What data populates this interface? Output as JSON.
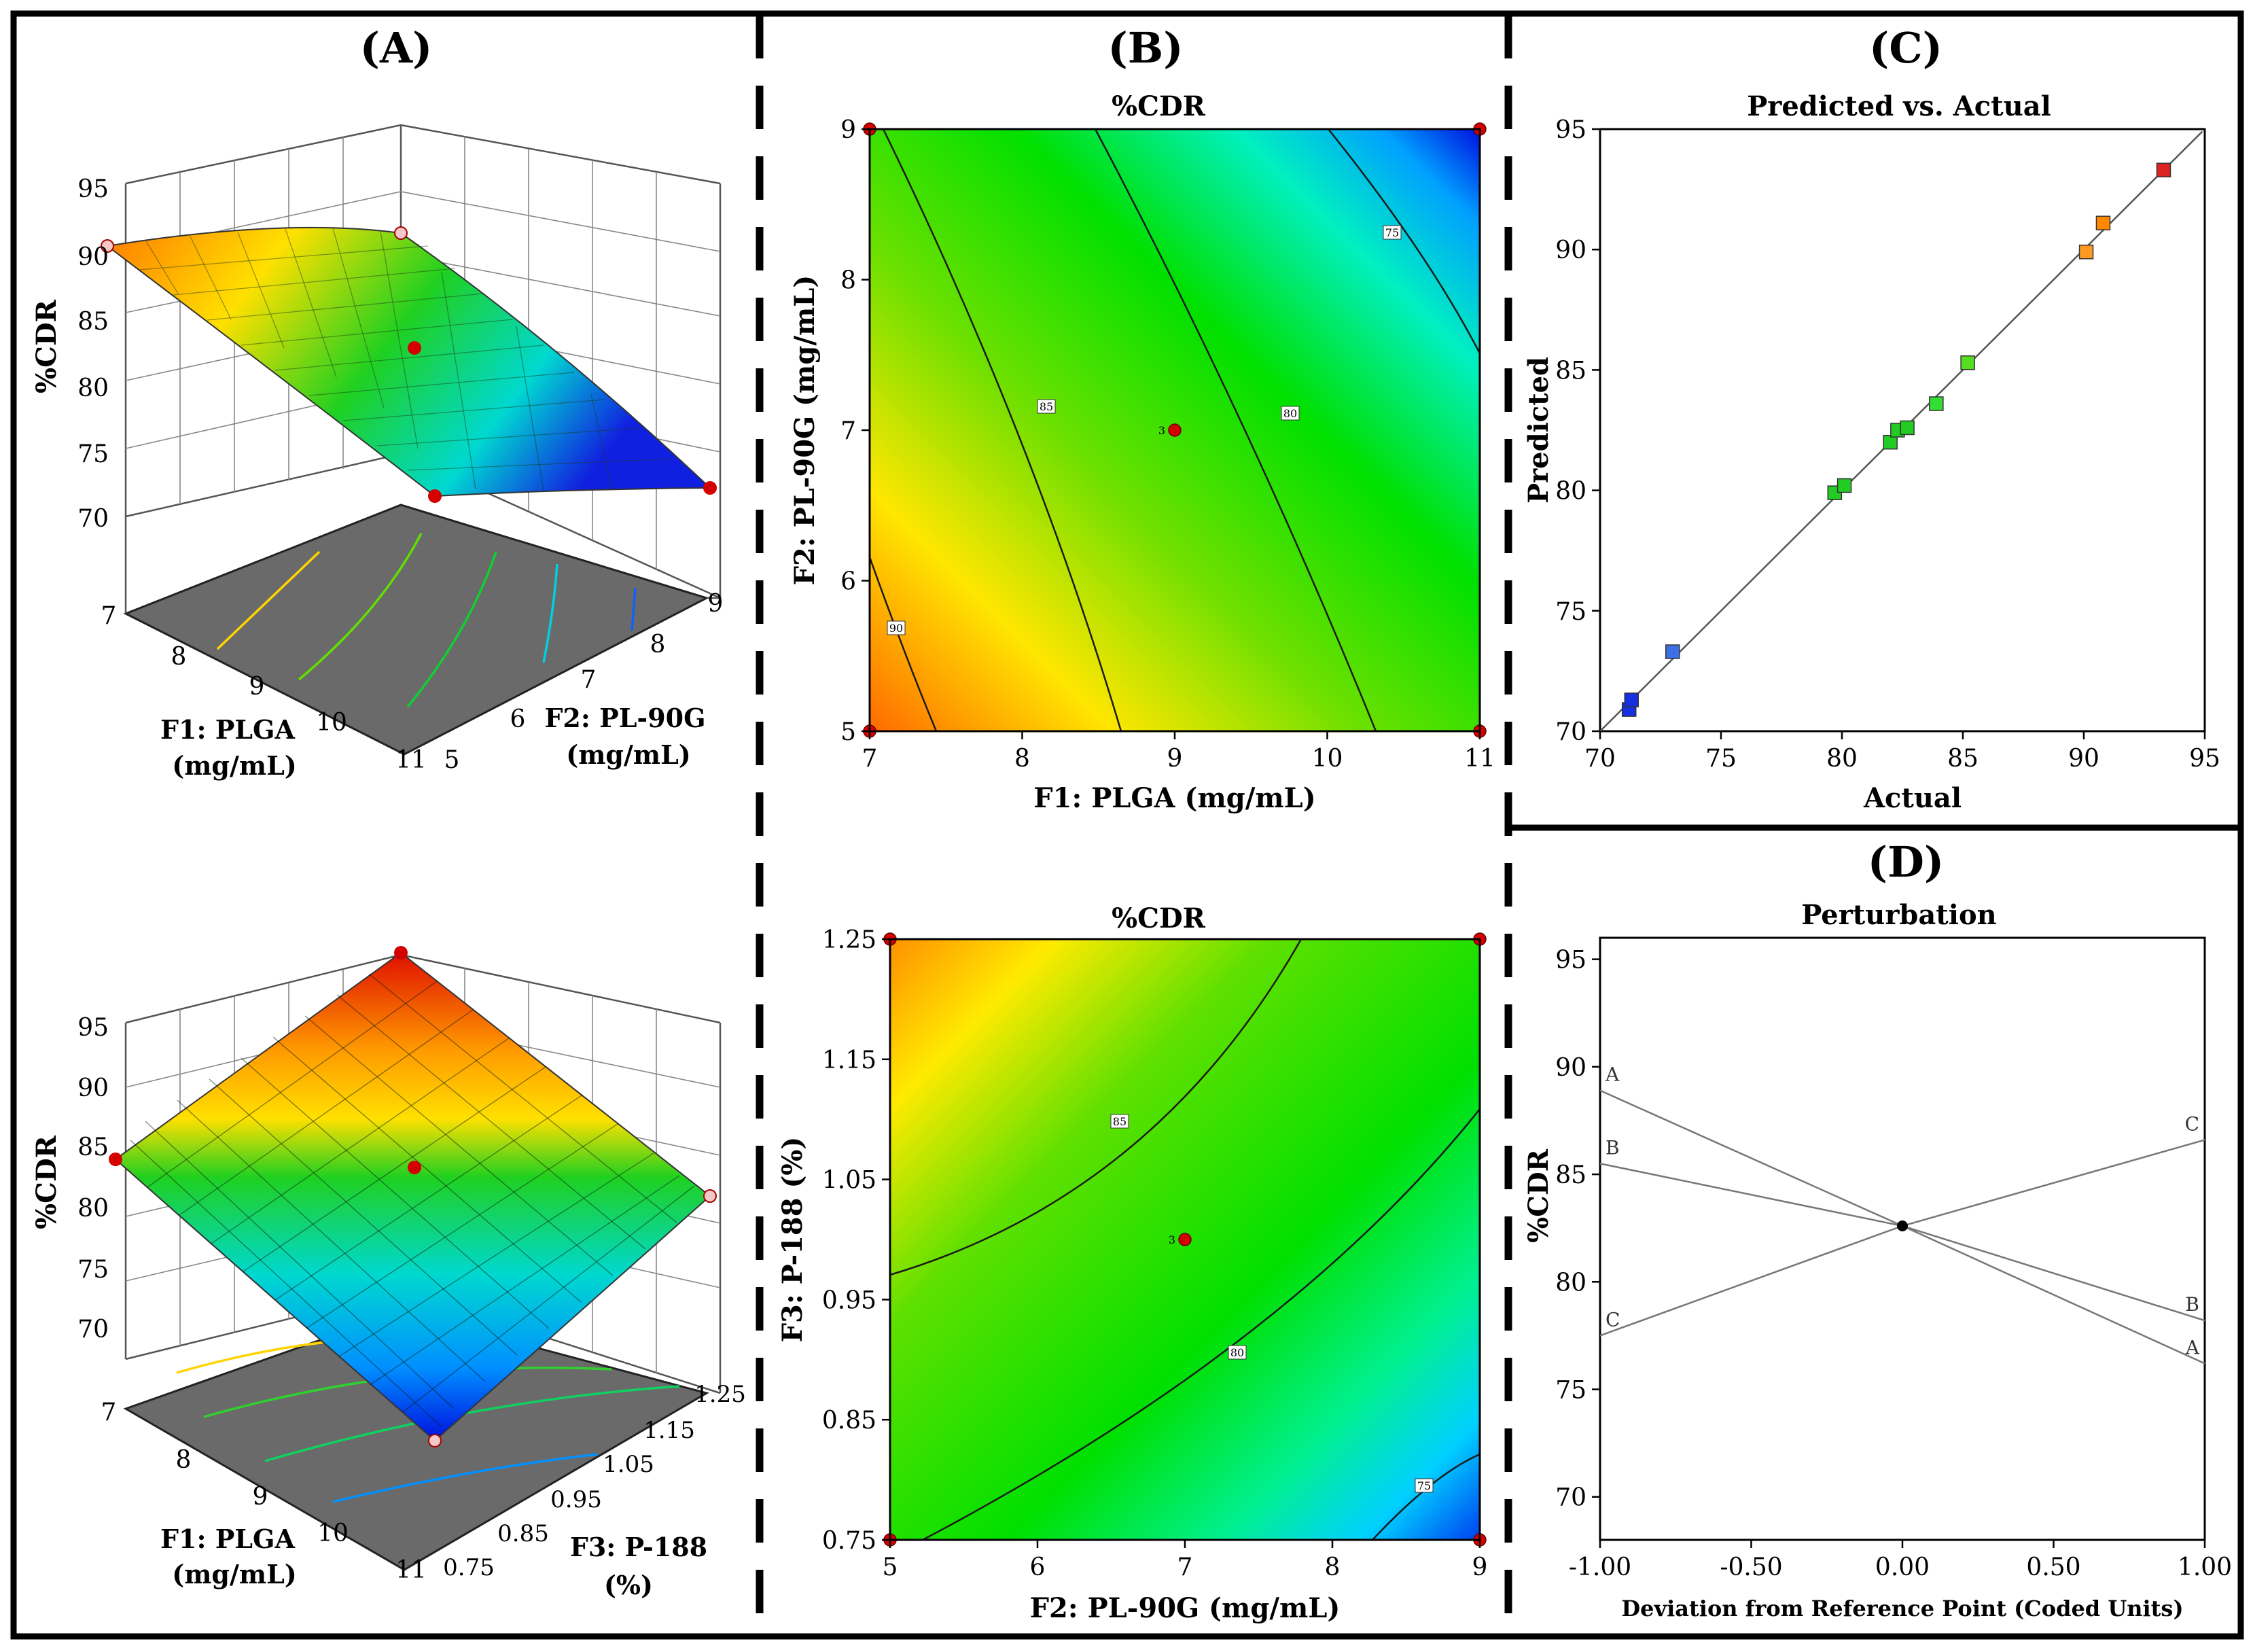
{
  "colors": {
    "frame": "#000000",
    "accent_red": "#d40000",
    "floor": "#6a6a6a"
  },
  "panels": {
    "A": "(A)",
    "B": "(B)",
    "C": "(C)",
    "D": "(D)"
  },
  "chart_data": [
    {
      "id": "A1",
      "type": "surface3d",
      "zlabel": "%CDR",
      "xlabel": "F1: PLGA",
      "xlabel2": "(mg/mL)",
      "ylabel": "F2: PL-90G",
      "ylabel2": "(mg/mL)",
      "xticks": [
        "7",
        "8",
        "9",
        "10",
        "11"
      ],
      "yticks": [
        "5",
        "6",
        "7",
        "8",
        "9"
      ],
      "zticks": [
        "70",
        "75",
        "80",
        "85",
        "90",
        "95"
      ],
      "corners": {
        "x7_y5": 90.5,
        "x7_y9": 91.5,
        "x11_y5": 71.0,
        "x11_y9": 72.5
      },
      "center": {
        "x": 9,
        "y": 7,
        "z": 82.6
      }
    },
    {
      "id": "A2",
      "type": "surface3d",
      "zlabel": "%CDR",
      "xlabel": "F1: PLGA",
      "xlabel2": "(mg/mL)",
      "ylabel": "F3: P-188",
      "ylabel2": "(%)",
      "xticks": [
        "7",
        "8",
        "9",
        "10",
        "11"
      ],
      "yticks": [
        "0.75",
        "0.85",
        "0.95",
        "1.05",
        "1.15",
        "1.25"
      ],
      "zticks": [
        "70",
        "75",
        "80",
        "85",
        "90",
        "95"
      ],
      "corners": {
        "x7_y075": 82.5,
        "x7_y125": 95.5,
        "x11_y075": 70.0,
        "x11_y125": 82.0
      },
      "center": {
        "x": 9,
        "y": 1.0,
        "z": 82.6
      }
    },
    {
      "id": "B1",
      "type": "contour",
      "title": "%CDR",
      "xlabel": "F1: PLGA (mg/mL)",
      "ylabel": "F2: PL-90G (mg/mL)",
      "xlim": [
        7,
        11
      ],
      "ylim": [
        5,
        9
      ],
      "xticks": [
        "7",
        "8",
        "9",
        "10",
        "11"
      ],
      "yticks": [
        "5",
        "6",
        "7",
        "8",
        "9"
      ],
      "contour_labels": [
        "90",
        "85",
        "80",
        "75"
      ],
      "center_label": "3",
      "design_points": [
        [
          7,
          9
        ],
        [
          11,
          9
        ],
        [
          7,
          5
        ],
        [
          11,
          5
        ],
        [
          9,
          7
        ]
      ]
    },
    {
      "id": "B2",
      "type": "contour",
      "title": "%CDR",
      "xlabel": "F2: PL-90G (mg/mL)",
      "ylabel": "F3: P-188 (%)",
      "xlim": [
        5,
        9
      ],
      "ylim": [
        0.75,
        1.25
      ],
      "xticks": [
        "5",
        "6",
        "7",
        "8",
        "9"
      ],
      "yticks": [
        "0.75",
        "0.85",
        "0.95",
        "1.05",
        "1.15",
        "1.25"
      ],
      "contour_labels": [
        "85",
        "80",
        "75"
      ],
      "center_label": "3",
      "design_points": [
        [
          5,
          1.25
        ],
        [
          9,
          1.25
        ],
        [
          5,
          0.75
        ],
        [
          9,
          0.75
        ],
        [
          7,
          1.0
        ]
      ]
    },
    {
      "id": "C",
      "type": "scatter",
      "title": "Predicted vs. Actual",
      "xlabel": "Actual",
      "ylabel": "Predicted",
      "xlim": [
        70,
        95
      ],
      "ylim": [
        70,
        95
      ],
      "xticks": [
        "70",
        "75",
        "80",
        "85",
        "90",
        "95"
      ],
      "yticks": [
        "70",
        "75",
        "80",
        "85",
        "90",
        "95"
      ],
      "points": [
        [
          71.2,
          70.9
        ],
        [
          71.3,
          71.3
        ],
        [
          73.0,
          73.3
        ],
        [
          79.7,
          79.9
        ],
        [
          80.1,
          80.2
        ],
        [
          82.0,
          82.0
        ],
        [
          82.3,
          82.5
        ],
        [
          82.7,
          82.6
        ],
        [
          83.9,
          83.6
        ],
        [
          85.2,
          85.3
        ],
        [
          90.1,
          89.9
        ],
        [
          90.8,
          91.1
        ],
        [
          93.3,
          93.3
        ]
      ],
      "point_colors": [
        "#1530e0",
        "#1530e0",
        "#3a6fe6",
        "#22cc22",
        "#22cc22",
        "#22cc22",
        "#22cc22",
        "#22cc22",
        "#33dd33",
        "#55dd22",
        "#ff9922",
        "#ff8800",
        "#dd2222"
      ]
    },
    {
      "id": "D",
      "type": "line",
      "title": "Perturbation",
      "xlabel": "Deviation from Reference Point (Coded Units)",
      "ylabel": "%CDR",
      "xlim": [
        -1,
        1
      ],
      "ylim": [
        68,
        96
      ],
      "xticks": [
        "-1.00",
        "-0.50",
        "0.00",
        "0.50",
        "1.00"
      ],
      "yticks": [
        "70",
        "75",
        "80",
        "85",
        "90",
        "95"
      ],
      "series": [
        {
          "name": "A",
          "x": [
            -1,
            0,
            1
          ],
          "y": [
            88.9,
            82.6,
            76.2
          ]
        },
        {
          "name": "B",
          "x": [
            -1,
            0,
            1
          ],
          "y": [
            85.5,
            82.6,
            78.2
          ]
        },
        {
          "name": "C",
          "x": [
            -1,
            0,
            1
          ],
          "y": [
            77.5,
            82.6,
            86.6
          ]
        }
      ],
      "reference_point": {
        "x": 0,
        "y": 82.6
      }
    }
  ]
}
